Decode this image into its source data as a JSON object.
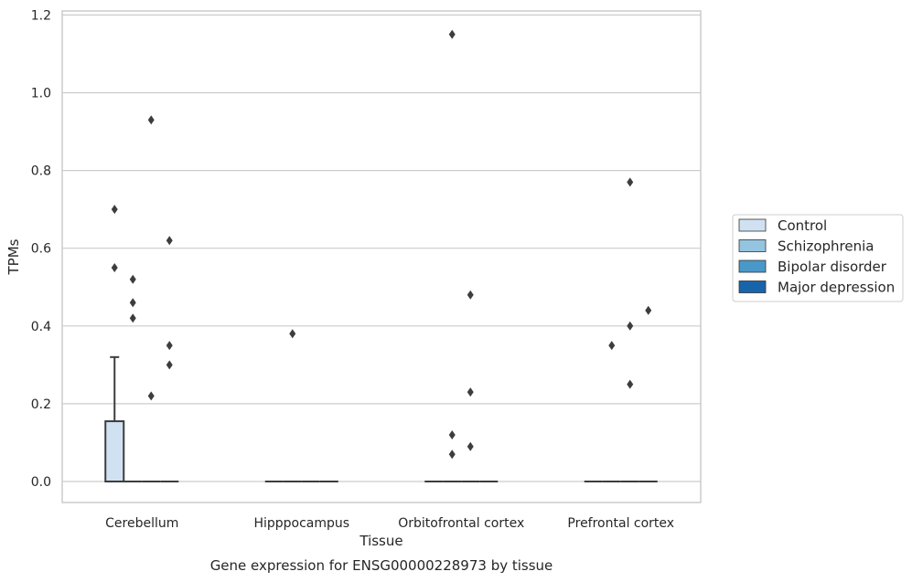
{
  "chart_data": {
    "type": "box",
    "title": "",
    "caption": "Gene expression for ENSG00000228973 by tissue",
    "xlabel": "Tissue",
    "ylabel": "TPMs",
    "ylim": [
      -0.055,
      1.21
    ],
    "yticks": [
      "0.0",
      "0.2",
      "0.4",
      "0.6",
      "0.8",
      "1.0",
      "1.2"
    ],
    "ytick_values": [
      0,
      0.2,
      0.4,
      0.6,
      0.8,
      1.0,
      1.2
    ],
    "grid": true,
    "legend_position": "right",
    "categories": [
      "Cerebellum",
      "Hipppocampus",
      "Orbitofrontal cortex",
      "Prefrontal cortex"
    ],
    "series": [
      {
        "name": "Control",
        "color": "#d0e1f2",
        "boxes": [
          {
            "q1": 0,
            "median": 0,
            "q3": 0.155,
            "whisker_low": 0,
            "whisker_high": 0.32,
            "outliers": [
              0.55,
              0.7
            ]
          },
          {
            "q1": 0,
            "median": 0,
            "q3": 0,
            "whisker_low": 0,
            "whisker_high": 0,
            "outliers": []
          },
          {
            "q1": 0,
            "median": 0,
            "q3": 0,
            "whisker_low": 0,
            "whisker_high": 0,
            "outliers": []
          },
          {
            "q1": 0,
            "median": 0,
            "q3": 0,
            "whisker_low": 0,
            "whisker_high": 0,
            "outliers": []
          }
        ]
      },
      {
        "name": "Schizophrenia",
        "color": "#94c4df",
        "boxes": [
          {
            "q1": 0,
            "median": 0,
            "q3": 0,
            "whisker_low": 0,
            "whisker_high": 0,
            "outliers": [
              0.42,
              0.46,
              0.52
            ]
          },
          {
            "q1": 0,
            "median": 0,
            "q3": 0,
            "whisker_low": 0,
            "whisker_high": 0,
            "outliers": [
              0.38
            ]
          },
          {
            "q1": 0,
            "median": 0,
            "q3": 0,
            "whisker_low": 0,
            "whisker_high": 0,
            "outliers": [
              0.07,
              0.12,
              1.15
            ]
          },
          {
            "q1": 0,
            "median": 0,
            "q3": 0,
            "whisker_low": 0,
            "whisker_high": 0,
            "outliers": [
              0.35
            ]
          }
        ]
      },
      {
        "name": "Bipolar disorder",
        "color": "#4a98c9",
        "boxes": [
          {
            "q1": 0,
            "median": 0,
            "q3": 0,
            "whisker_low": 0,
            "whisker_high": 0,
            "outliers": [
              0.22,
              0.93
            ]
          },
          {
            "q1": 0,
            "median": 0,
            "q3": 0,
            "whisker_low": 0,
            "whisker_high": 0,
            "outliers": []
          },
          {
            "q1": 0,
            "median": 0,
            "q3": 0,
            "whisker_low": 0,
            "whisker_high": 0,
            "outliers": [
              0.09,
              0.23,
              0.48
            ]
          },
          {
            "q1": 0,
            "median": 0,
            "q3": 0,
            "whisker_low": 0,
            "whisker_high": 0,
            "outliers": [
              0.25,
              0.4,
              0.77
            ]
          }
        ]
      },
      {
        "name": "Major depression",
        "color": "#1764ab",
        "boxes": [
          {
            "q1": 0,
            "median": 0,
            "q3": 0,
            "whisker_low": 0,
            "whisker_high": 0,
            "outliers": [
              0.3,
              0.35,
              0.62
            ]
          },
          {
            "q1": 0,
            "median": 0,
            "q3": 0,
            "whisker_low": 0,
            "whisker_high": 0,
            "outliers": []
          },
          {
            "q1": 0,
            "median": 0,
            "q3": 0,
            "whisker_low": 0,
            "whisker_high": 0,
            "outliers": []
          },
          {
            "q1": 0,
            "median": 0,
            "q3": 0,
            "whisker_low": 0,
            "whisker_high": 0,
            "outliers": [
              0.44
            ]
          }
        ]
      }
    ]
  }
}
